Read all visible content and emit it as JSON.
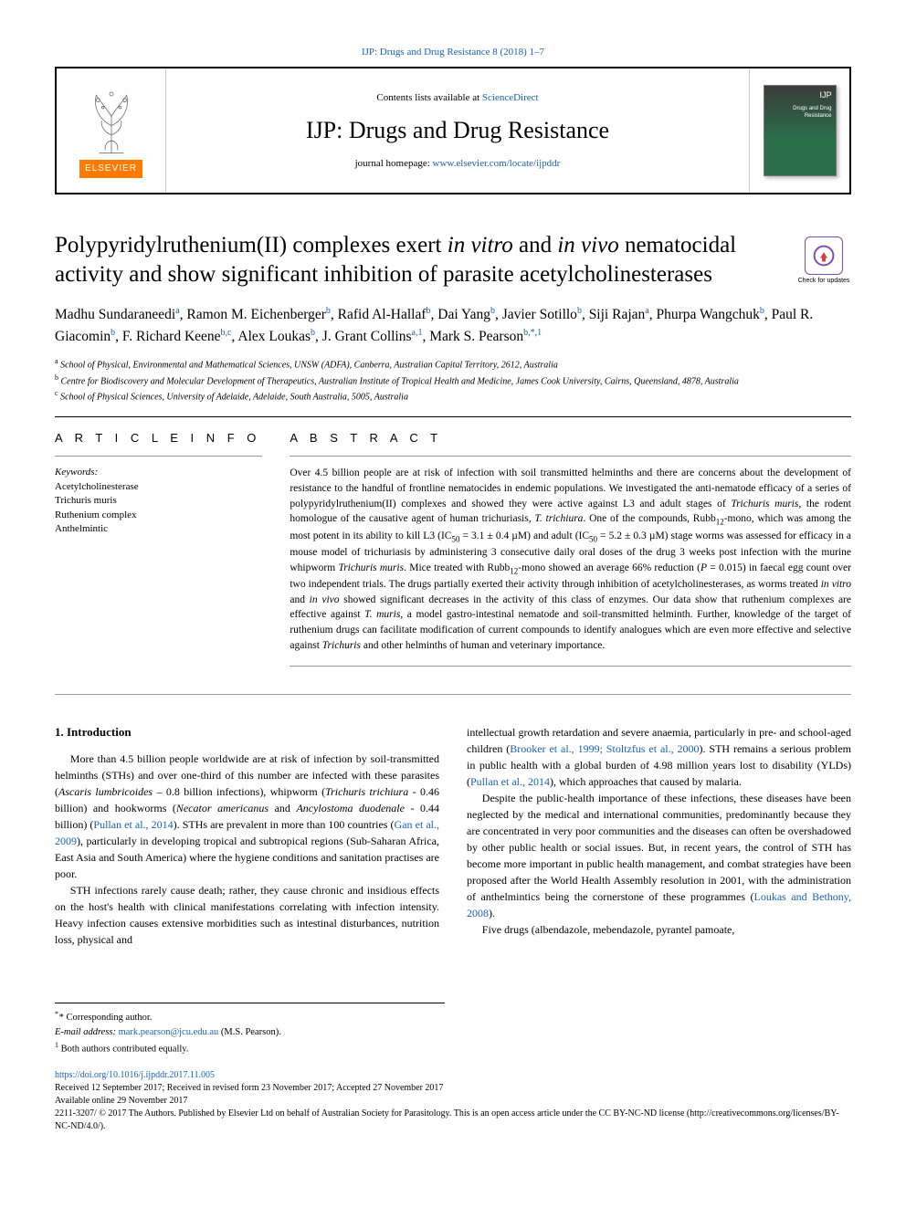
{
  "running_head": {
    "prefix": "IJP: Drugs and Drug Resistance 8 (2018) 1–7"
  },
  "masthead": {
    "contents_line_prefix": "Contents lists available at ",
    "contents_link": "ScienceDirect",
    "journal_title": "IJP: Drugs and Drug Resistance",
    "homepage_prefix": "journal homepage: ",
    "homepage_link": "www.elsevier.com/locate/ijpddr",
    "publisher_word": "ELSEVIER",
    "cover_ijp": "IJP",
    "cover_sub": "Drugs and Drug Resistance"
  },
  "check_updates": "Check for updates",
  "title_parts": {
    "p1": "Polypyridylruthenium(II) complexes exert ",
    "it1": "in vitro",
    "p2": " and ",
    "it2": "in vivo",
    "p3": " nematocidal activity and show significant inhibition of parasite acetylcholinesterases"
  },
  "authors": [
    {
      "name": "Madhu Sundaraneedi",
      "sup": "a"
    },
    {
      "name": "Ramon M. Eichenberger",
      "sup": "b"
    },
    {
      "name": "Rafid Al-Hallaf",
      "sup": "b"
    },
    {
      "name": "Dai Yang",
      "sup": "b"
    },
    {
      "name": "Javier Sotillo",
      "sup": "b"
    },
    {
      "name": "Siji Rajan",
      "sup": "a"
    },
    {
      "name": "Phurpa Wangchuk",
      "sup": "b"
    },
    {
      "name": "Paul R. Giacomin",
      "sup": "b"
    },
    {
      "name": "F. Richard Keene",
      "sup": "b,c"
    },
    {
      "name": "Alex Loukas",
      "sup": "b"
    },
    {
      "name": "J. Grant Collins",
      "sup": "a,1"
    },
    {
      "name": "Mark S. Pearson",
      "sup": "b,*,1"
    }
  ],
  "affiliations": {
    "a": "School of Physical, Environmental and Mathematical Sciences, UNSW (ADFA), Canberra, Australian Capital Territory, 2612, Australia",
    "b": "Centre for Biodiscovery and Molecular Development of Therapeutics, Australian Institute of Tropical Health and Medicine, James Cook University, Cairns, Queensland, 4878, Australia",
    "c": "School of Physical Sciences, University of Adelaide, Adelaide, South Australia, 5005, Australia"
  },
  "article_info_heading": "A R T I C L E  I N F O",
  "abstract_heading": "A B S T R A C T",
  "keywords_label": "Keywords:",
  "keywords": [
    "Acetylcholinesterase",
    "Trichuris muris",
    "Ruthenium complex",
    "Anthelmintic"
  ],
  "abstract": {
    "t1": "Over 4.5 billion people are at risk of infection with soil transmitted helminths and there are concerns about the development of resistance to the handful of frontline nematocides in endemic populations. We investigated the anti-nematode efficacy of a series of polypyridylruthenium(II) complexes and showed they were active against L3 and adult stages of ",
    "i1": "Trichuris muris",
    "t2": ", the rodent homologue of the causative agent of human trichuriasis, ",
    "i2": "T. trichiura",
    "t3": ". One of the compounds, Rubb",
    "sub1": "12",
    "t4": "-mono, which was among the most potent in its ability to kill L3 (IC",
    "sub2": "50",
    "t5": " = 3.1 ± 0.4 µM) and adult (IC",
    "sub3": "50",
    "t6": " = 5.2 ± 0.3 µM) stage worms was assessed for efficacy in a mouse model of trichuriasis by administering 3 consecutive daily oral doses of the drug 3 weeks post infection with the murine whipworm ",
    "i3": "Trichuris muris",
    "t7": ". Mice treated with Rubb",
    "sub4": "12",
    "t8": "-mono showed an average 66% reduction (",
    "i4": "P",
    "t9": " = 0.015) in faecal egg count over two independent trials. The drugs partially exerted their activity through inhibition of acetylcholinesterases, as worms treated ",
    "i5": "in vitro",
    "t10": " and ",
    "i6": "in vivo",
    "t11": " showed significant decreases in the activity of this class of enzymes. Our data show that ruthenium complexes are effective against ",
    "i7": "T. muris",
    "t12": ", a model gastro-intestinal nematode and soil-transmitted helminth. Further, knowledge of the target of ruthenium drugs can facilitate modification of current compounds to identify analogues which are even more effective and selective against ",
    "i8": "Trichuris",
    "t13": " and other helminths of human and veterinary importance."
  },
  "section1_heading": "1. Introduction",
  "body": {
    "p1_t1": "More than 4.5 billion people worldwide are at risk of infection by soil-transmitted helminths (STHs) and over one-third of this number are infected with these parasites (",
    "p1_i1": "Ascaris lumbricoides",
    "p1_t2": " – 0.8 billion infections), whipworm (",
    "p1_i2": "Trichuris trichiura",
    "p1_t3": " - 0.46 billion) and hookworms (",
    "p1_i3": "Necator americanus",
    "p1_t4": " and ",
    "p1_i4": "Ancylostoma duodenale",
    "p1_t5": " - 0.44 billion) (",
    "p1_a1": "Pullan et al., 2014",
    "p1_t6": "). STHs are prevalent in more than 100 countries (",
    "p1_a2": "Gan et al., 2009",
    "p1_t7": "), particularly in developing tropical and subtropical regions (Sub-Saharan Africa, East Asia and South America) where the hygiene conditions and sanitation practises are poor.",
    "p2_t1": "STH infections rarely cause death; rather, they cause chronic and insidious effects on the host's health with clinical manifestations correlating with infection intensity. Heavy infection causes extensive morbidities such as intestinal disturbances, nutrition loss, physical and",
    "p3_t1": "intellectual growth retardation and severe anaemia, particularly in pre- and school-aged children (",
    "p3_a1": "Brooker et al., 1999; Stoltzfus et al., 2000",
    "p3_t2": "). STH remains a serious problem in public health with a global burden of 4.98 million years lost to disability (YLDs) (",
    "p3_a2": "Pullan et al., 2014",
    "p3_t3": "), which approaches that caused by malaria.",
    "p4_t1": "Despite the public-health importance of these infections, these diseases have been neglected by the medical and international communities, predominantly because they are concentrated in very poor communities and the diseases can often be overshadowed by other public health or social issues. But, in recent years, the control of STH has become more important in public health management, and combat strategies have been proposed after the World Health Assembly resolution in 2001, with the administration of anthelmintics being the cornerstone of these programmes (",
    "p4_a1": "Loukas and Bethony, 2008",
    "p4_t2": ").",
    "p5_t1": "Five drugs (albendazole, mebendazole, pyrantel pamoate,"
  },
  "footnotes": {
    "corr_label": "* Corresponding author.",
    "email_label": "E-mail address: ",
    "email": "mark.pearson@jcu.edu.au",
    "email_after": " (M.S. Pearson).",
    "equal": "Both authors contributed equally.",
    "equal_sup": "1"
  },
  "footer": {
    "doi": "https://doi.org/10.1016/j.ijpddr.2017.11.005",
    "received": "Received 12 September 2017; Received in revised form 23 November 2017; Accepted 27 November 2017",
    "online": "Available online 29 November 2017",
    "license": "2211-3207/ © 2017 The Authors. Published by Elsevier Ltd on behalf of Australian Society for Parasitology. This is an open access article under the CC BY-NC-ND license (http://creativecommons.org/licenses/BY-NC-ND/4.0/)."
  },
  "colors": {
    "link": "#1a5fb4",
    "elsevier_orange": "#ff7a00",
    "badge_ring": "#7c4db3",
    "badge_mark": "#d93c3c"
  }
}
